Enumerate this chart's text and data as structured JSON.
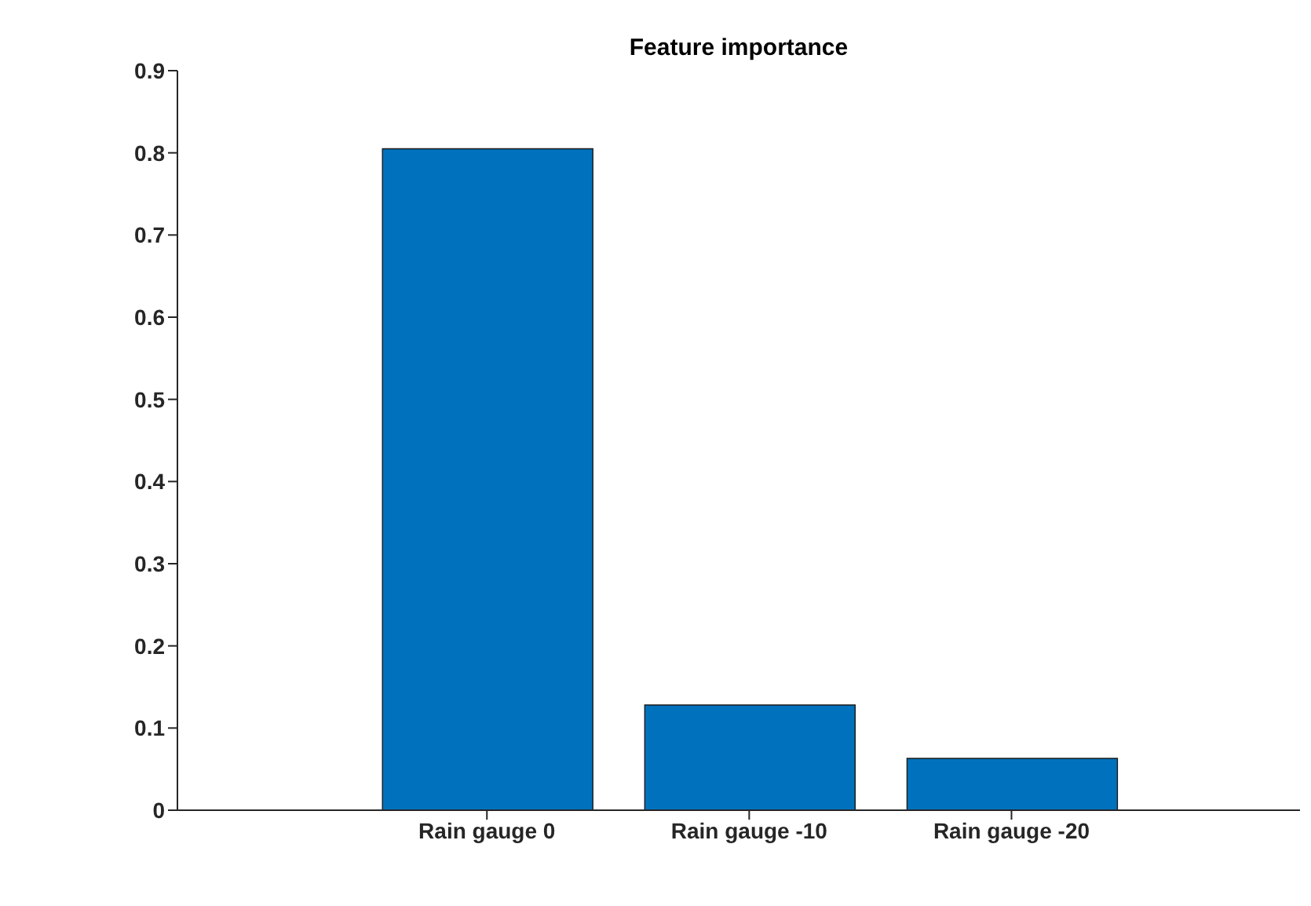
{
  "chart_data": {
    "type": "bar",
    "title": "Feature importance",
    "categories": [
      "Rain gauge 0",
      "Rain gauge -10",
      "Rain gauge -20"
    ],
    "values": [
      0.805,
      0.128,
      0.063
    ],
    "color": "#0072bd",
    "ylim": [
      0,
      0.9
    ],
    "yticks": [
      0,
      0.1,
      0.2,
      0.3,
      0.4,
      0.5,
      0.6,
      0.7,
      0.8,
      0.9
    ],
    "grid": false,
    "legend": false
  }
}
